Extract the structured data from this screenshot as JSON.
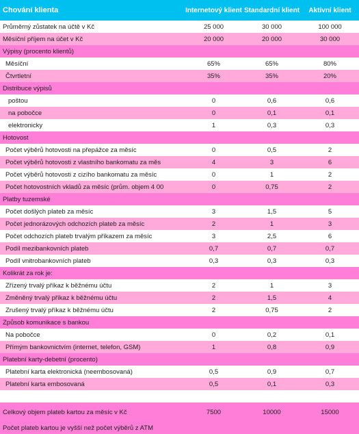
{
  "header": {
    "title": "Chování klienta",
    "col1": "Internetový klient",
    "col2": "Standardní klient",
    "col3": "Aktivní klient"
  },
  "rows": [
    {
      "label": "Průměrný zůstatek na účtě v Kč",
      "v": [
        "25 000",
        "30 000",
        "100 000"
      ]
    },
    {
      "label": "Měsíční příjem na účet v Kč",
      "v": [
        "20 000",
        "20 000",
        "30 000"
      ]
    },
    {
      "label": "Výpisy (procento klientů)"
    },
    {
      "label": "Měsíční",
      "v": [
        "65%",
        "65%",
        "80%"
      ]
    },
    {
      "label": "Čtvrtletní",
      "v": [
        "35%",
        "35%",
        "20%"
      ]
    },
    {
      "label": "Distribuce výpisů"
    },
    {
      "label": "poštou",
      "v": [
        "0",
        "0,6",
        "0,6"
      ]
    },
    {
      "label": "na pobočce",
      "v": [
        "0",
        "0,1",
        "0,1"
      ]
    },
    {
      "label": "elektronicky",
      "v": [
        "1",
        "0,3",
        "0,3"
      ]
    },
    {
      "label": "Hotovost"
    },
    {
      "label": "Počet výběrů hotovosti na přepážce za měsíc",
      "v": [
        "0",
        "0,5",
        "2"
      ]
    },
    {
      "label": "Počet výběrů hotovosti z vlastního bankomatu za měs",
      "v": [
        "4",
        "3",
        "6"
      ]
    },
    {
      "label": "Počet výběrů hotovosti z cizího bankomatu za měsíc",
      "v": [
        "0",
        "1",
        "2"
      ]
    },
    {
      "label": "Počet hotovostních vkladů za měsíc (prům. objem 4 00",
      "v": [
        "0",
        "0,75",
        "2"
      ]
    },
    {
      "label": "Platby tuzemské"
    },
    {
      "label": "Počet došlých plateb za měsíc",
      "v": [
        "3",
        "1,5",
        "5"
      ]
    },
    {
      "label": "Počet jednorázových odchozích plateb za měsíc",
      "v": [
        "2",
        "1",
        "3"
      ]
    },
    {
      "label": "Počet odchozích plateb trvalým příkazem za měsíc",
      "v": [
        "3",
        "2,5",
        "6"
      ]
    },
    {
      "label": "Podíl mezibankovních plateb",
      "v": [
        "0,7",
        "0,7",
        "0,7"
      ]
    },
    {
      "label": "Podíl vnitrobankovních plateb",
      "v": [
        "0,3",
        "0,3",
        "0,3"
      ]
    },
    {
      "label": "Kolikrát za rok je:"
    },
    {
      "label": "Zřízený trvalý příkaz k běžnému účtu",
      "v": [
        "2",
        "1",
        "3"
      ]
    },
    {
      "label": "Změněný trvalý příkaz k běžnému účtu",
      "v": [
        "2",
        "1,5",
        "4"
      ]
    },
    {
      "label": "Zrušený trvalý příkaz k běžnému účtu",
      "v": [
        "2",
        "0,75",
        "2"
      ]
    },
    {
      "label": "Způsob komunikace s bankou"
    },
    {
      "label": "Na pobočce",
      "v": [
        "0",
        "0,2",
        "0,1"
      ]
    },
    {
      "label": "Přímým bankovnictvím (internet, telefon, GSM)",
      "v": [
        "1",
        "0,8",
        "0,9"
      ]
    },
    {
      "label": "Platební karty-debetní (procento)"
    },
    {
      "label": "Platební karta elektronická (neembosovaná)",
      "v": [
        "0,5",
        "0,9",
        "0,7"
      ]
    },
    {
      "label": "Platební karta embosovaná",
      "v": [
        "0,5",
        "0,1",
        "0,3"
      ]
    },
    {
      "label": "Celkový objem plateb kartou za měsíc v Kč",
      "v": [
        "7500",
        "10000",
        "15000"
      ]
    },
    {
      "label": "Počet plateb kartou je vyšší než počet výběrů z ATM"
    }
  ]
}
